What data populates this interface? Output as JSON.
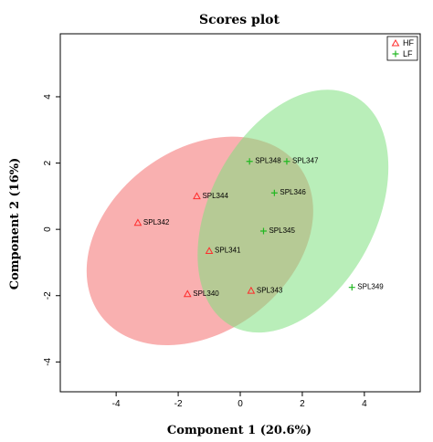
{
  "chart_data": {
    "type": "scatter",
    "title": "Scores plot",
    "xlabel": "Component 1 (20.6%)",
    "ylabel": "Component 2 (16%)",
    "xlim": [
      -5.8,
      5.8
    ],
    "ylim": [
      -4.9,
      5.9
    ],
    "xticks": [
      -4,
      -2,
      0,
      2,
      4
    ],
    "yticks": [
      -4,
      -2,
      0,
      2,
      4
    ],
    "legend_position": "top-right",
    "series": [
      {
        "name": "HF",
        "color": "#ff2b2b",
        "marker": "triangle",
        "ellipse_color": "#f46f6f",
        "points": [
          {
            "label": "SPL342",
            "x": -3.3,
            "y": 0.2
          },
          {
            "label": "SPL344",
            "x": -1.4,
            "y": 1.0
          },
          {
            "label": "SPL341",
            "x": -1.0,
            "y": -0.65
          },
          {
            "label": "SPL340",
            "x": -1.7,
            "y": -1.95
          },
          {
            "label": "SPL343",
            "x": 0.35,
            "y": -1.85
          }
        ]
      },
      {
        "name": "LF",
        "color": "#22b822",
        "marker": "plus",
        "ellipse_color": "#7fe07f",
        "points": [
          {
            "label": "SPL348",
            "x": 0.3,
            "y": 2.05
          },
          {
            "label": "SPL347",
            "x": 1.5,
            "y": 2.05
          },
          {
            "label": "SPL346",
            "x": 1.1,
            "y": 1.1
          },
          {
            "label": "SPL345",
            "x": 0.75,
            "y": -0.05
          },
          {
            "label": "SPL349",
            "x": 3.6,
            "y": -1.75
          }
        ]
      }
    ],
    "ellipses": [
      {
        "series": "HF",
        "cx": -1.3,
        "cy": -0.35,
        "rx": 4.0,
        "ry": 2.75,
        "angle_deg": -37
      },
      {
        "series": "LF",
        "cx": 1.7,
        "cy": 0.55,
        "rx": 4.2,
        "ry": 2.5,
        "angle_deg": -62
      }
    ]
  }
}
